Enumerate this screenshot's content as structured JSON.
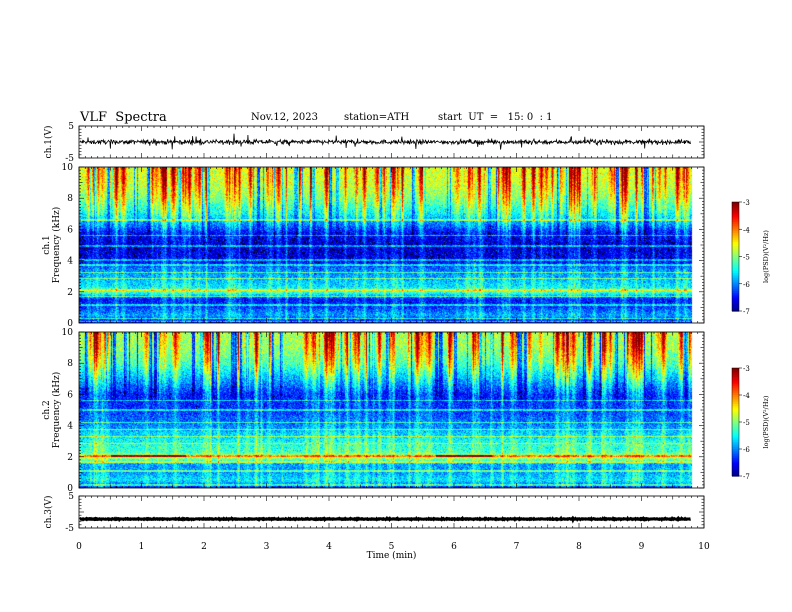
{
  "header": {
    "title": "VLF  Spectra",
    "date": "Nov.12, 2023",
    "station": "station=ATH",
    "start": "start  UT  =   15: 0  : 1"
  },
  "chart_data": [
    {
      "type": "line",
      "panel": "ch1-waveform",
      "ylabel": "ch.1(V)",
      "ylim": [
        -5,
        5
      ],
      "yticks": [
        "5",
        "-5"
      ],
      "xlim": [
        0,
        10
      ],
      "data_end_min": 9.8,
      "description_values": {
        "baseline": 0.0,
        "noise_amplitude": 0.7,
        "spike_max": 2.0
      }
    },
    {
      "type": "heatmap",
      "panel": "ch1-spectrogram",
      "ylabel": "ch.1\nFrequency (kHz)",
      "ylabel_lines": [
        "ch.1",
        "Frequency (kHz)"
      ],
      "ylim": [
        0,
        10
      ],
      "yticks": [
        "0",
        "2",
        "4",
        "6",
        "8",
        "10"
      ],
      "xlim": [
        0,
        10
      ],
      "data_end_min": 9.8,
      "colorbar": {
        "label": "log(PSD)(V²/Hz)",
        "min": -7,
        "max": -3,
        "ticks": [
          "-3",
          "-4",
          "-5",
          "-6",
          "-7"
        ]
      },
      "freq_profile_khz": [
        [
          0.0,
          -6.6
        ],
        [
          0.5,
          -5.9
        ],
        [
          1.0,
          -6.3
        ],
        [
          1.5,
          -6.5
        ],
        [
          2.0,
          -5.2
        ],
        [
          2.3,
          -5.6
        ],
        [
          2.8,
          -5.8
        ],
        [
          3.5,
          -6.1
        ],
        [
          4.0,
          -6.6
        ],
        [
          5.0,
          -6.7
        ],
        [
          5.8,
          -6.5
        ],
        [
          6.2,
          -6.1
        ],
        [
          7.0,
          -5.5
        ],
        [
          8.0,
          -5.0
        ],
        [
          9.0,
          -4.7
        ],
        [
          10.0,
          -4.6
        ]
      ],
      "horizontal_lines_khz": [
        0.1,
        0.3,
        1.15,
        1.7,
        2.1,
        2.85,
        3.25,
        3.7,
        4.05,
        4.95,
        5.6,
        6.6
      ],
      "sferic_density_per_min": 9
    },
    {
      "type": "heatmap",
      "panel": "ch2-spectrogram",
      "ylabel": "ch.2\nFrequency (kHz)",
      "ylabel_lines": [
        "ch.2",
        "Frequency (kHz)"
      ],
      "ylim": [
        0,
        10
      ],
      "yticks": [
        "0",
        "2",
        "4",
        "6",
        "8",
        "10"
      ],
      "xlim": [
        0,
        10
      ],
      "data_end_min": 9.8,
      "colorbar": {
        "label": "log(PSD)(V²/Hz)",
        "min": -7,
        "max": -3,
        "ticks": [
          "-3",
          "-4",
          "-5",
          "-6",
          "-7"
        ]
      },
      "freq_profile_khz": [
        [
          0.0,
          -6.4
        ],
        [
          0.5,
          -5.6
        ],
        [
          1.0,
          -5.9
        ],
        [
          1.5,
          -5.9
        ],
        [
          2.0,
          -4.7
        ],
        [
          2.3,
          -5.3
        ],
        [
          2.8,
          -5.4
        ],
        [
          3.5,
          -5.7
        ],
        [
          4.0,
          -6.0
        ],
        [
          5.0,
          -6.3
        ],
        [
          6.0,
          -6.4
        ],
        [
          7.0,
          -5.8
        ],
        [
          8.0,
          -5.2
        ],
        [
          9.0,
          -4.9
        ],
        [
          10.0,
          -4.8
        ]
      ],
      "horizontal_lines_khz": [
        0.2,
        1.1,
        1.65,
        2.05,
        2.85,
        3.3,
        3.75,
        4.2,
        5.0,
        5.6
      ],
      "bright_line": {
        "khz": 2.05,
        "intervals_min": [
          [
            0.5,
            1.7
          ],
          [
            5.7,
            6.6
          ]
        ]
      },
      "sferic_density_per_min": 9
    },
    {
      "type": "line",
      "panel": "ch3-waveform",
      "ylabel": "ch.3(V)",
      "ylim": [
        -5,
        5
      ],
      "yticks": [
        "5",
        "-5"
      ],
      "xlim": [
        0,
        10
      ],
      "data_end_min": 9.8,
      "xlabel": "Time  (min)",
      "xticks": [
        "0",
        "1",
        "2",
        "3",
        "4",
        "5",
        "6",
        "7",
        "8",
        "9",
        "10"
      ],
      "description_values": {
        "baseline": -2.2,
        "noise_amplitude": 0.15
      }
    }
  ]
}
